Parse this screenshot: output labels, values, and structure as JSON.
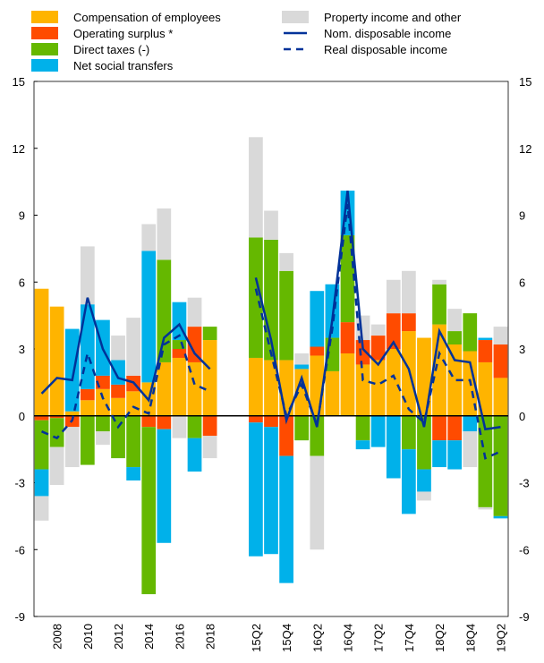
{
  "chart_data": {
    "type": "bar",
    "categories": [
      null,
      "2008",
      null,
      "2010",
      null,
      "2012",
      null,
      "2014",
      null,
      "2016",
      null,
      "2018",
      null,
      null,
      "15Q2",
      null,
      "15Q4",
      null,
      "16Q2",
      null,
      "16Q4",
      null,
      "17Q2",
      null,
      "17Q4",
      null,
      "18Q2",
      null,
      "18Q4",
      null,
      "19Q2"
    ],
    "series": [
      {
        "name": "Compensation of employees",
        "color": "#ffb400",
        "kind": "bar",
        "values": [
          5.7,
          4.9,
          0.2,
          0.7,
          1.2,
          0.8,
          1.1,
          1.5,
          2.4,
          2.6,
          2.4,
          3.4,
          null,
          null,
          2.6,
          2.5,
          2.5,
          2.1,
          2.7,
          2.0,
          2.8,
          2.3,
          2.5,
          3.0,
          3.8,
          3.5,
          4.1,
          3.2,
          2.9,
          2.4,
          1.7
        ]
      },
      {
        "name": "Operating surplus *",
        "color": "#ff4b00",
        "kind": "bar",
        "values": [
          -0.2,
          -0.1,
          -0.5,
          0.5,
          0.6,
          0.6,
          0.7,
          -0.5,
          -0.6,
          0.4,
          1.6,
          -0.9,
          null,
          null,
          -0.3,
          -0.5,
          -1.8,
          0,
          0.4,
          0,
          1.4,
          1.1,
          1.1,
          1.6,
          0.8,
          0,
          -1.1,
          -1.1,
          0,
          1.0,
          1.5
        ]
      },
      {
        "name": "Direct taxes (-)",
        "color": "#65b800",
        "kind": "bar",
        "values": [
          -2.2,
          -1.3,
          0,
          -2.2,
          -0.7,
          -1.9,
          -2.3,
          -7.5,
          4.6,
          0.4,
          -1.0,
          0.6,
          null,
          null,
          5.4,
          5.4,
          4.0,
          -1.1,
          -1.8,
          1.5,
          3.9,
          -1.1,
          0,
          0,
          -1.5,
          -2.4,
          1.8,
          0.6,
          1.7,
          -4.1,
          -4.5
        ]
      },
      {
        "name": "Net social transfers",
        "color": "#00b1ea",
        "kind": "bar",
        "values": [
          -1.2,
          0,
          3.7,
          3.8,
          2.5,
          1.1,
          -0.6,
          5.9,
          -5.1,
          1.7,
          -1.5,
          0,
          null,
          null,
          -6.0,
          -5.7,
          -5.7,
          0.2,
          2.5,
          2.4,
          2.0,
          -0.4,
          -1.4,
          -2.8,
          -2.9,
          -1.0,
          -1.2,
          -1.3,
          -0.7,
          0.1,
          -0.1
        ]
      },
      {
        "name": "Property income and other",
        "color": "#d9d9d9",
        "kind": "bar",
        "values": [
          -1.1,
          -1.7,
          -1.8,
          2.6,
          -0.6,
          1.1,
          2.6,
          1.2,
          2.3,
          -1.0,
          1.3,
          -1.0,
          null,
          null,
          4.5,
          1.3,
          0.8,
          0.5,
          -4.2,
          0,
          0,
          1.1,
          0.5,
          1.5,
          1.9,
          -0.4,
          0.2,
          1.0,
          -1.6,
          -0.1,
          0.8
        ]
      },
      {
        "name": "Nom. disposable income",
        "color": "#003299",
        "kind": "line",
        "values": [
          1.0,
          1.7,
          1.6,
          5.3,
          3.0,
          1.7,
          1.5,
          0.7,
          3.5,
          4.1,
          2.8,
          2.1,
          null,
          null,
          6.2,
          3.4,
          -0.2,
          1.7,
          -0.5,
          4.3,
          10.1,
          3.0,
          2.3,
          3.3,
          2.1,
          -0.5,
          3.8,
          2.5,
          2.4,
          -0.6,
          -0.5
        ]
      },
      {
        "name": "Real disposable income",
        "color": "#003299",
        "kind": "dashed-line",
        "values": [
          -0.7,
          -1.0,
          -0.2,
          2.8,
          0.8,
          -0.5,
          0.4,
          0.1,
          3.2,
          3.6,
          1.4,
          1.1,
          null,
          null,
          5.7,
          2.8,
          0,
          1.4,
          -0.4,
          3.9,
          9.5,
          1.6,
          1.4,
          1.8,
          0.3,
          -0.3,
          2.8,
          1.6,
          1.6,
          -1.9,
          -1.6
        ]
      }
    ],
    "ylim": [
      -9,
      15
    ],
    "yticks": [
      -9,
      -6,
      -3,
      0,
      3,
      6,
      9,
      12,
      15
    ]
  }
}
